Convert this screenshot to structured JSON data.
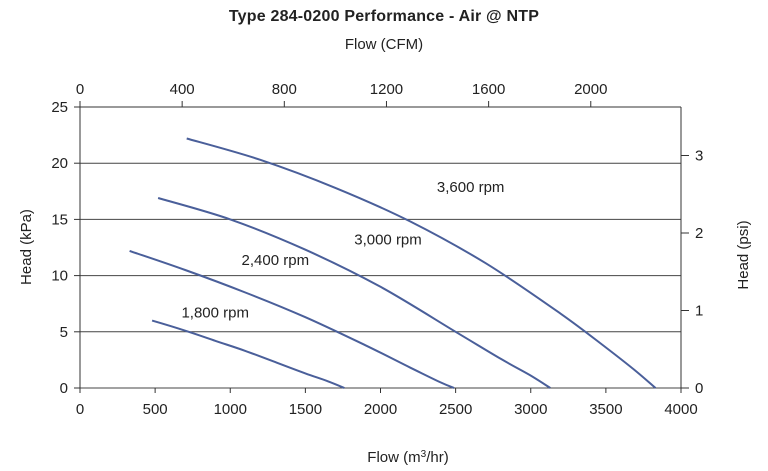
{
  "chart_data": {
    "type": "line",
    "title": "Type 284-0200 Performance - Air @ NTP",
    "top_axis": {
      "label": "Flow (CFM)",
      "ticks": [
        0,
        400,
        800,
        1200,
        1600,
        2000
      ],
      "range": [
        0,
        2353.3
      ]
    },
    "xlabel": "Flow (m3/hr)",
    "xlim": [
      0,
      4000
    ],
    "xticks": [
      0,
      500,
      1000,
      1500,
      2000,
      2500,
      3000,
      3500,
      4000
    ],
    "ylabel": "Head (kPa)",
    "ylim": [
      0,
      25
    ],
    "yticks": [
      0,
      5,
      10,
      15,
      20,
      25
    ],
    "right_axis": {
      "label": "Head (psi)",
      "ticks": [
        0,
        1,
        2,
        3
      ],
      "range": [
        0,
        3.626
      ]
    },
    "grid": "horizontal",
    "series": [
      {
        "name": "1,800 rpm",
        "color": "#4a5f9a",
        "x": [
          480,
          700,
          900,
          1100,
          1300,
          1500,
          1650,
          1760
        ],
        "y": [
          6.0,
          5.1,
          4.2,
          3.3,
          2.3,
          1.3,
          0.6,
          0.0
        ]
      },
      {
        "name": "2,400 rpm",
        "color": "#4a5f9a",
        "x": [
          330,
          700,
          1100,
          1500,
          1900,
          2200,
          2400,
          2490
        ],
        "y": [
          12.2,
          10.5,
          8.5,
          6.3,
          3.8,
          1.8,
          0.5,
          0.0
        ]
      },
      {
        "name": "3,000 rpm",
        "color": "#4a5f9a",
        "x": [
          520,
          1000,
          1500,
          2000,
          2500,
          2800,
          3000,
          3130
        ],
        "y": [
          16.9,
          15.0,
          12.3,
          9.0,
          5.0,
          2.6,
          1.1,
          0.0
        ]
      },
      {
        "name": "3,600 rpm",
        "color": "#4a5f9a",
        "x": [
          710,
          1200,
          1700,
          2200,
          2700,
          3200,
          3500,
          3700,
          3830
        ],
        "y": [
          22.2,
          20.3,
          17.8,
          14.8,
          11.1,
          6.6,
          3.6,
          1.5,
          0.0
        ]
      }
    ],
    "annotations": [
      {
        "text": "1,800 rpm",
        "x": 900,
        "y": 6.7
      },
      {
        "text": "2,400 rpm",
        "x": 1300,
        "y": 11.4
      },
      {
        "text": "3,000 rpm",
        "x": 2050,
        "y": 13.2
      },
      {
        "text": "3,600 rpm",
        "x": 2600,
        "y": 17.9
      }
    ]
  }
}
